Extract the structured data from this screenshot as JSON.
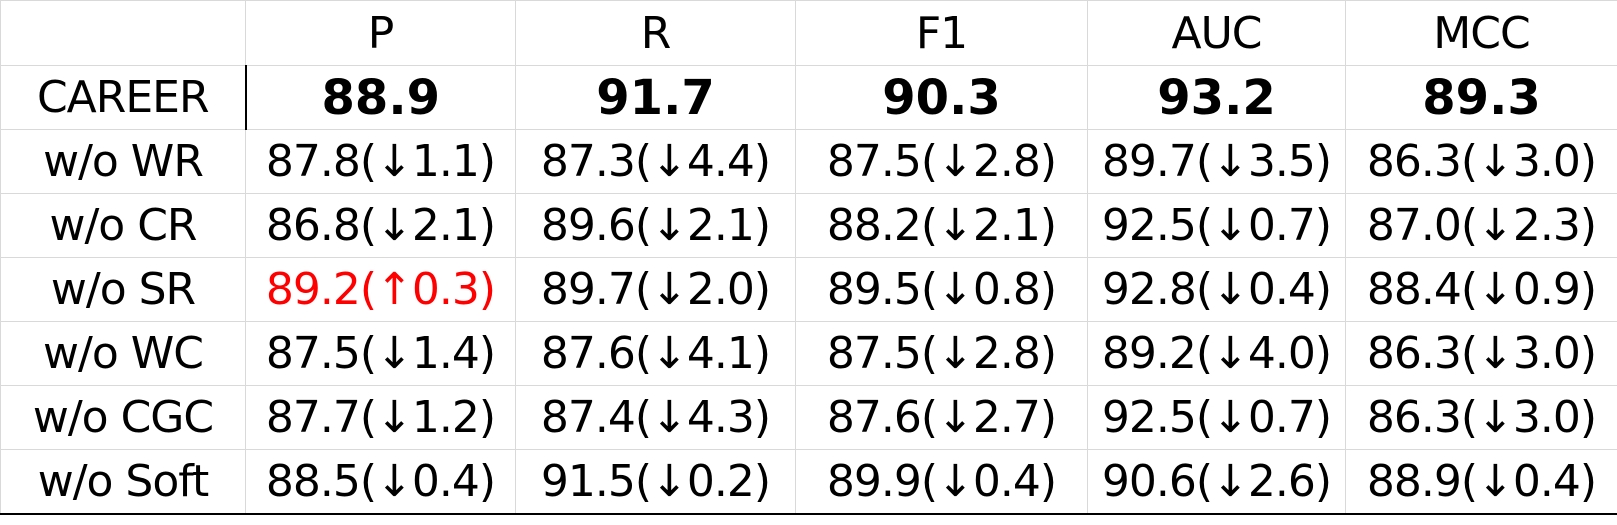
{
  "table": {
    "corner": "",
    "columns": [
      "P",
      "R",
      "F1",
      "AUC",
      "MCC"
    ],
    "reference_row": {
      "label": "CAREER",
      "values": [
        "88.9",
        "91.7",
        "90.3",
        "93.2",
        "89.3"
      ]
    },
    "rows": [
      {
        "label": "w/o WR",
        "values": [
          "87.8(↓1.1)",
          "87.3(↓4.4)",
          "87.5(↓2.8)",
          "89.7(↓3.5)",
          "86.3(↓3.0)"
        ]
      },
      {
        "label": "w/o CR",
        "values": [
          "86.8(↓2.1)",
          "89.6(↓2.1)",
          "88.2(↓2.1)",
          "92.5(↓0.7)",
          "87.0(↓2.3)"
        ]
      },
      {
        "label": "w/o SR",
        "values": [
          "89.2(↑0.3)",
          "89.7(↓2.0)",
          "89.5(↓0.8)",
          "92.8(↓0.4)",
          "88.4(↓0.9)"
        ]
      },
      {
        "label": "w/o WC",
        "values": [
          "87.5(↓1.4)",
          "87.6(↓4.1)",
          "87.5(↓2.8)",
          "89.2(↓4.0)",
          "86.3(↓3.0)"
        ]
      },
      {
        "label": "w/o CGC",
        "values": [
          "87.7(↓1.2)",
          "87.4(↓4.3)",
          "87.6(↓2.7)",
          "92.5(↓0.7)",
          "86.3(↓3.0)"
        ]
      },
      {
        "label": "w/o Soft",
        "values": [
          "88.5(↓0.4)",
          "91.5(↓0.2)",
          "89.9(↓0.4)",
          "90.6(↓2.6)",
          "88.9(↓0.4)"
        ]
      }
    ]
  },
  "colors": {
    "text": "#000000",
    "highlight": "#ff0000",
    "gridline": "#d9d9d9"
  }
}
